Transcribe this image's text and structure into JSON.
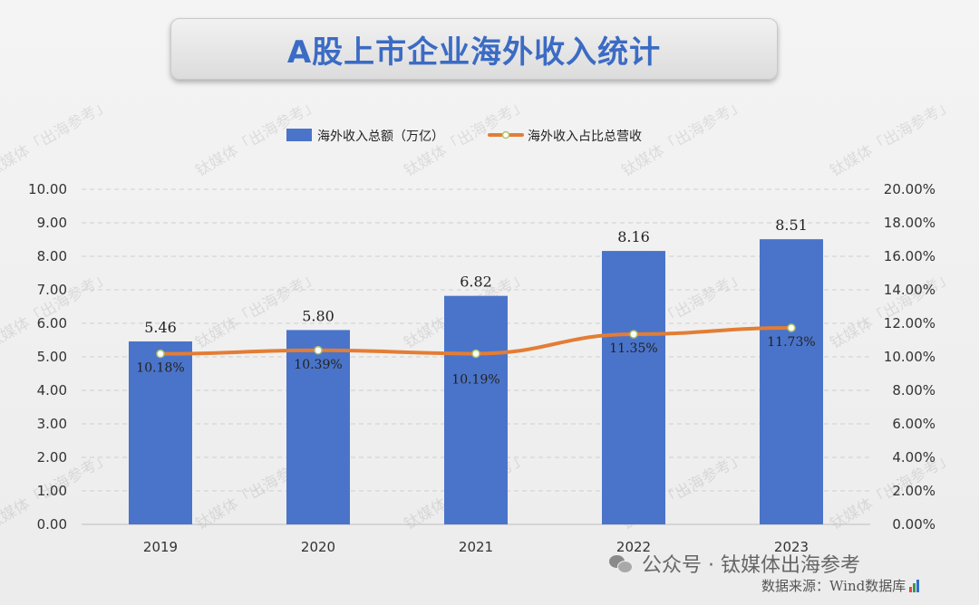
{
  "title": "A股上市企业海外收入统计",
  "footer": {
    "channel": "公众号 · 钛媒体出海参考",
    "source": "数据来源：Wind数据库",
    "watermark": "钛媒体「出海参考」"
  },
  "colors": {
    "bar": "#4a74c9",
    "line": "#e37d35",
    "title": "#3b6bc4"
  },
  "chart_data": {
    "type": "bar",
    "categories": [
      "2019",
      "2020",
      "2021",
      "2022",
      "2023"
    ],
    "series": [
      {
        "name": "海外收入总额（万亿）",
        "type": "bar",
        "axis": "left",
        "values": [
          5.46,
          5.8,
          6.82,
          8.16,
          8.51
        ],
        "labels": [
          "5.46",
          "5.80",
          "6.82",
          "8.16",
          "8.51"
        ]
      },
      {
        "name": "海外收入占比总营收",
        "type": "line",
        "axis": "right",
        "values": [
          10.18,
          10.39,
          10.19,
          11.35,
          11.73
        ],
        "labels": [
          "10.18%",
          "10.39%",
          "10.19%",
          "11.35%",
          "11.73%"
        ]
      }
    ],
    "y_left": {
      "min": 0,
      "max": 10,
      "step": 1,
      "ticks": [
        "0.00",
        "1.00",
        "2.00",
        "3.00",
        "4.00",
        "5.00",
        "6.00",
        "7.00",
        "8.00",
        "9.00",
        "10.00"
      ]
    },
    "y_right": {
      "min": 0,
      "max": 20,
      "step": 2,
      "ticks": [
        "0.00%",
        "2.00%",
        "4.00%",
        "6.00%",
        "8.00%",
        "10.00%",
        "12.00%",
        "14.00%",
        "16.00%",
        "18.00%",
        "20.00%"
      ]
    },
    "grid": true,
    "legend": "top"
  }
}
